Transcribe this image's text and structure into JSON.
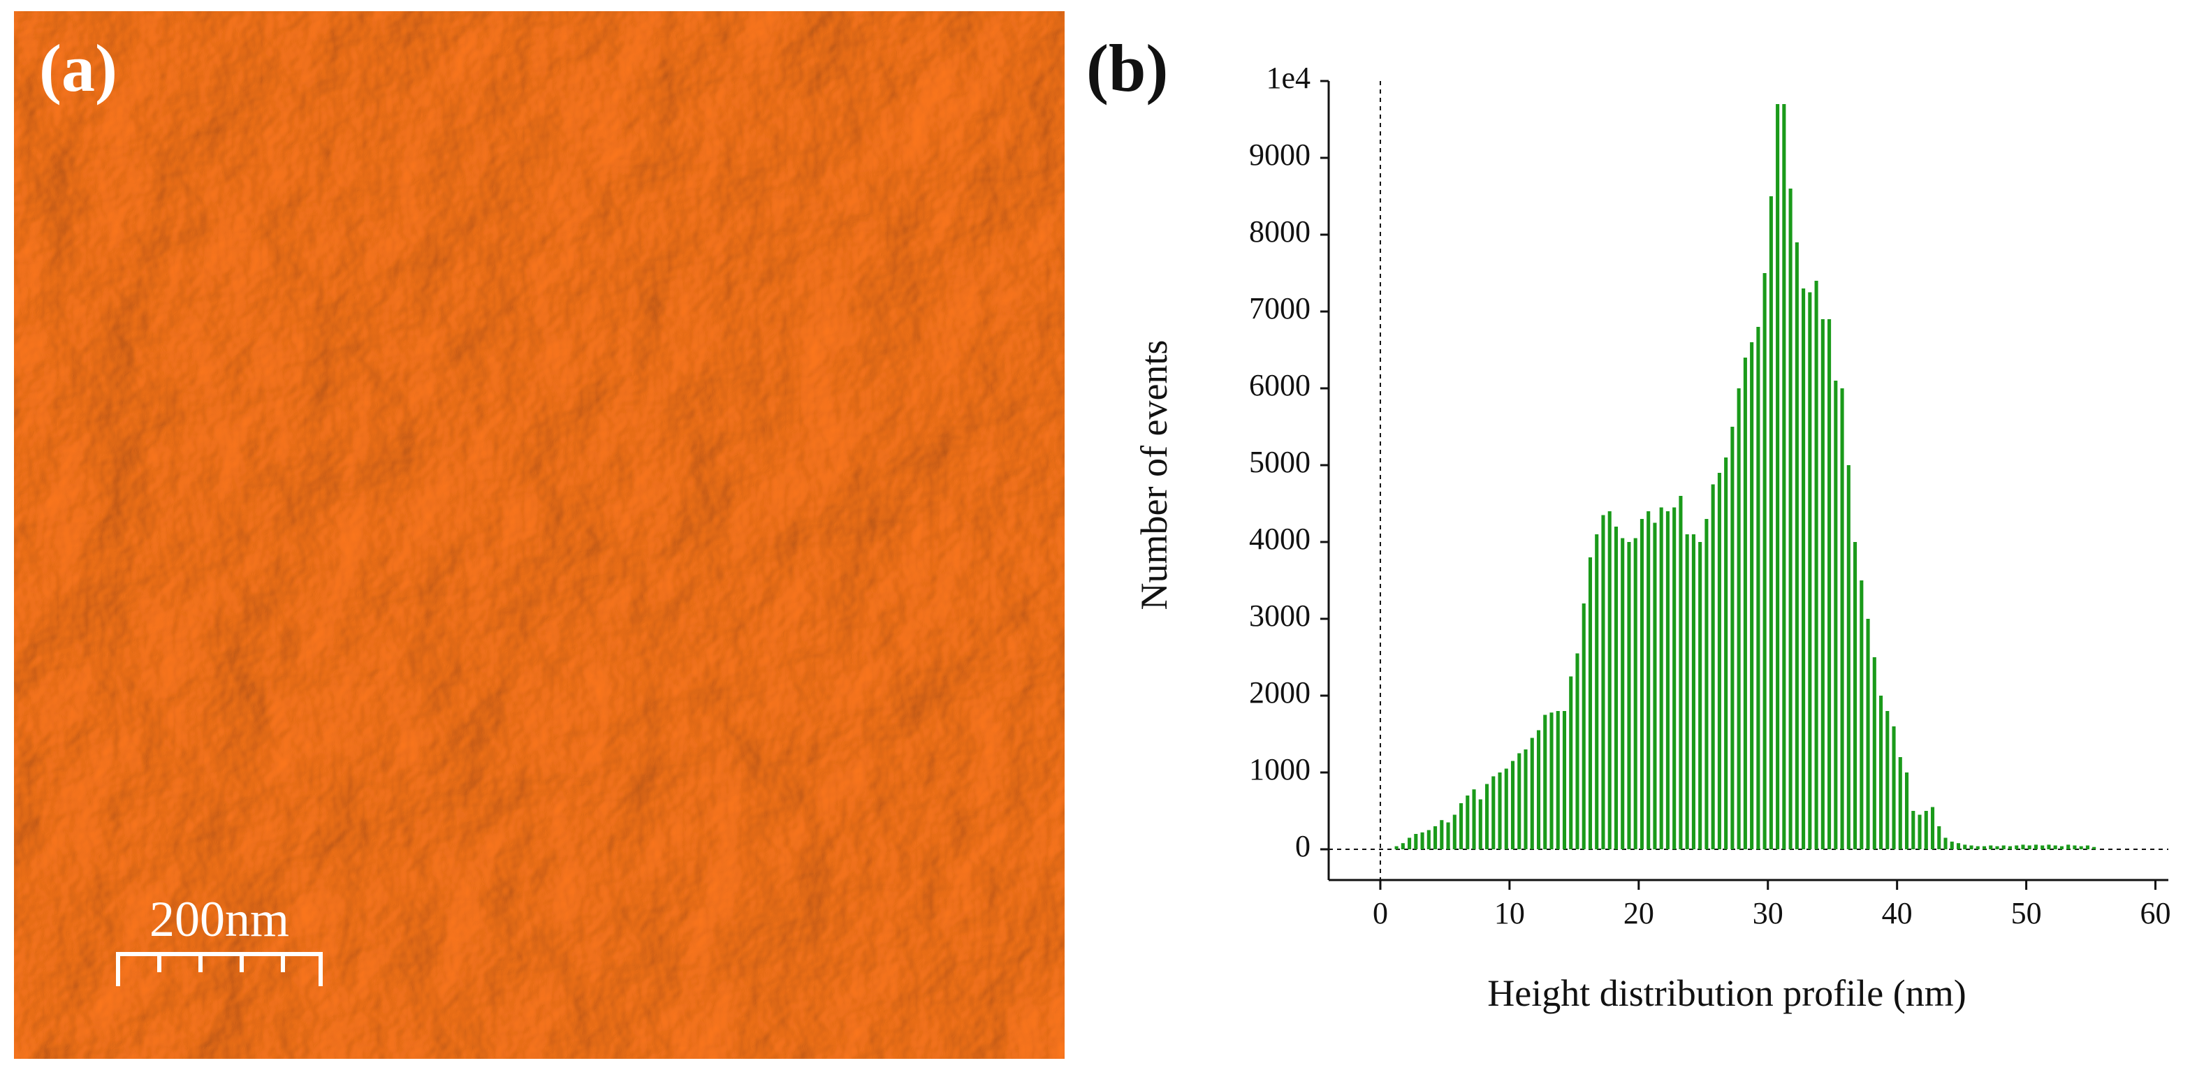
{
  "panel_a": {
    "label": "(a)",
    "scale_bar": "200nm"
  },
  "chart_data": {
    "type": "histogram",
    "panel_label": "(b)",
    "xlabel": "Height distribution profile (nm)",
    "ylabel": "Number of events",
    "color": "#1a9a1a",
    "bins": [
      1.0,
      1.5,
      2.0,
      2.5,
      3.0,
      3.5,
      4.0,
      4.5,
      5.0,
      5.5,
      6.0,
      6.5,
      7.0,
      7.5,
      8.0,
      8.5,
      9.0,
      9.5,
      10.0,
      10.5,
      11.0,
      11.5,
      12.0,
      12.5,
      13.0,
      13.5,
      14.0,
      14.5,
      15.0,
      15.5,
      16.0,
      16.5,
      17.0,
      17.5,
      18.0,
      18.5,
      19.0,
      19.5,
      20.0,
      20.5,
      21.0,
      21.5,
      22.0,
      22.5,
      23.0,
      23.5,
      24.0,
      24.5,
      25.0,
      25.5,
      26.0,
      26.5,
      27.0,
      27.5,
      28.0,
      28.5,
      29.0,
      29.5,
      30.0,
      30.5,
      31.0,
      31.5,
      32.0,
      32.5,
      33.0,
      33.5,
      34.0,
      34.5,
      35.0,
      35.5,
      36.0,
      36.5,
      37.0,
      37.5,
      38.0,
      38.5,
      39.0,
      39.5,
      40.0,
      40.5,
      41.0,
      41.5,
      42.0,
      42.5,
      43.0,
      43.5,
      44.0,
      44.5,
      45.0,
      45.5,
      46.0,
      46.5,
      47.0,
      47.5,
      48.0,
      48.5,
      49.0,
      49.5,
      50.0,
      50.5,
      51.0,
      51.5,
      52.0,
      52.5,
      53.0,
      53.5,
      54.0,
      54.5,
      55.0,
      55.5
    ],
    "values": [
      40,
      80,
      150,
      200,
      220,
      250,
      300,
      380,
      350,
      450,
      600,
      700,
      780,
      650,
      850,
      950,
      1000,
      1050,
      1150,
      1250,
      1300,
      1450,
      1550,
      1750,
      1780,
      1800,
      1800,
      2250,
      2550,
      3200,
      3800,
      4100,
      4350,
      4400,
      4200,
      4050,
      4000,
      4050,
      4300,
      4400,
      4250,
      4450,
      4400,
      4450,
      4600,
      4100,
      4100,
      4000,
      4300,
      4750,
      4900,
      5100,
      5500,
      6000,
      6400,
      6600,
      6800,
      7500,
      8500,
      9700,
      9700,
      8600,
      7900,
      7300,
      7250,
      7400,
      6900,
      6900,
      6100,
      6000,
      5000,
      4000,
      3500,
      3000,
      2500,
      2000,
      1800,
      1600,
      1200,
      1000,
      500,
      450,
      500,
      550,
      300,
      150,
      100,
      80,
      60,
      50,
      40,
      40,
      50,
      40,
      50,
      40,
      50,
      60,
      50,
      60,
      50,
      60,
      50,
      40,
      60,
      50,
      40,
      50,
      30
    ],
    "xlim": [
      -4,
      61
    ],
    "ylim": [
      -400,
      10000
    ],
    "xticks": [
      0,
      10,
      20,
      30,
      40,
      50,
      60
    ],
    "yticks": [
      0,
      1000,
      2000,
      3000,
      4000,
      5000,
      6000,
      7000,
      8000,
      9000,
      {
        "value": 10000,
        "label": "1e4"
      }
    ]
  }
}
